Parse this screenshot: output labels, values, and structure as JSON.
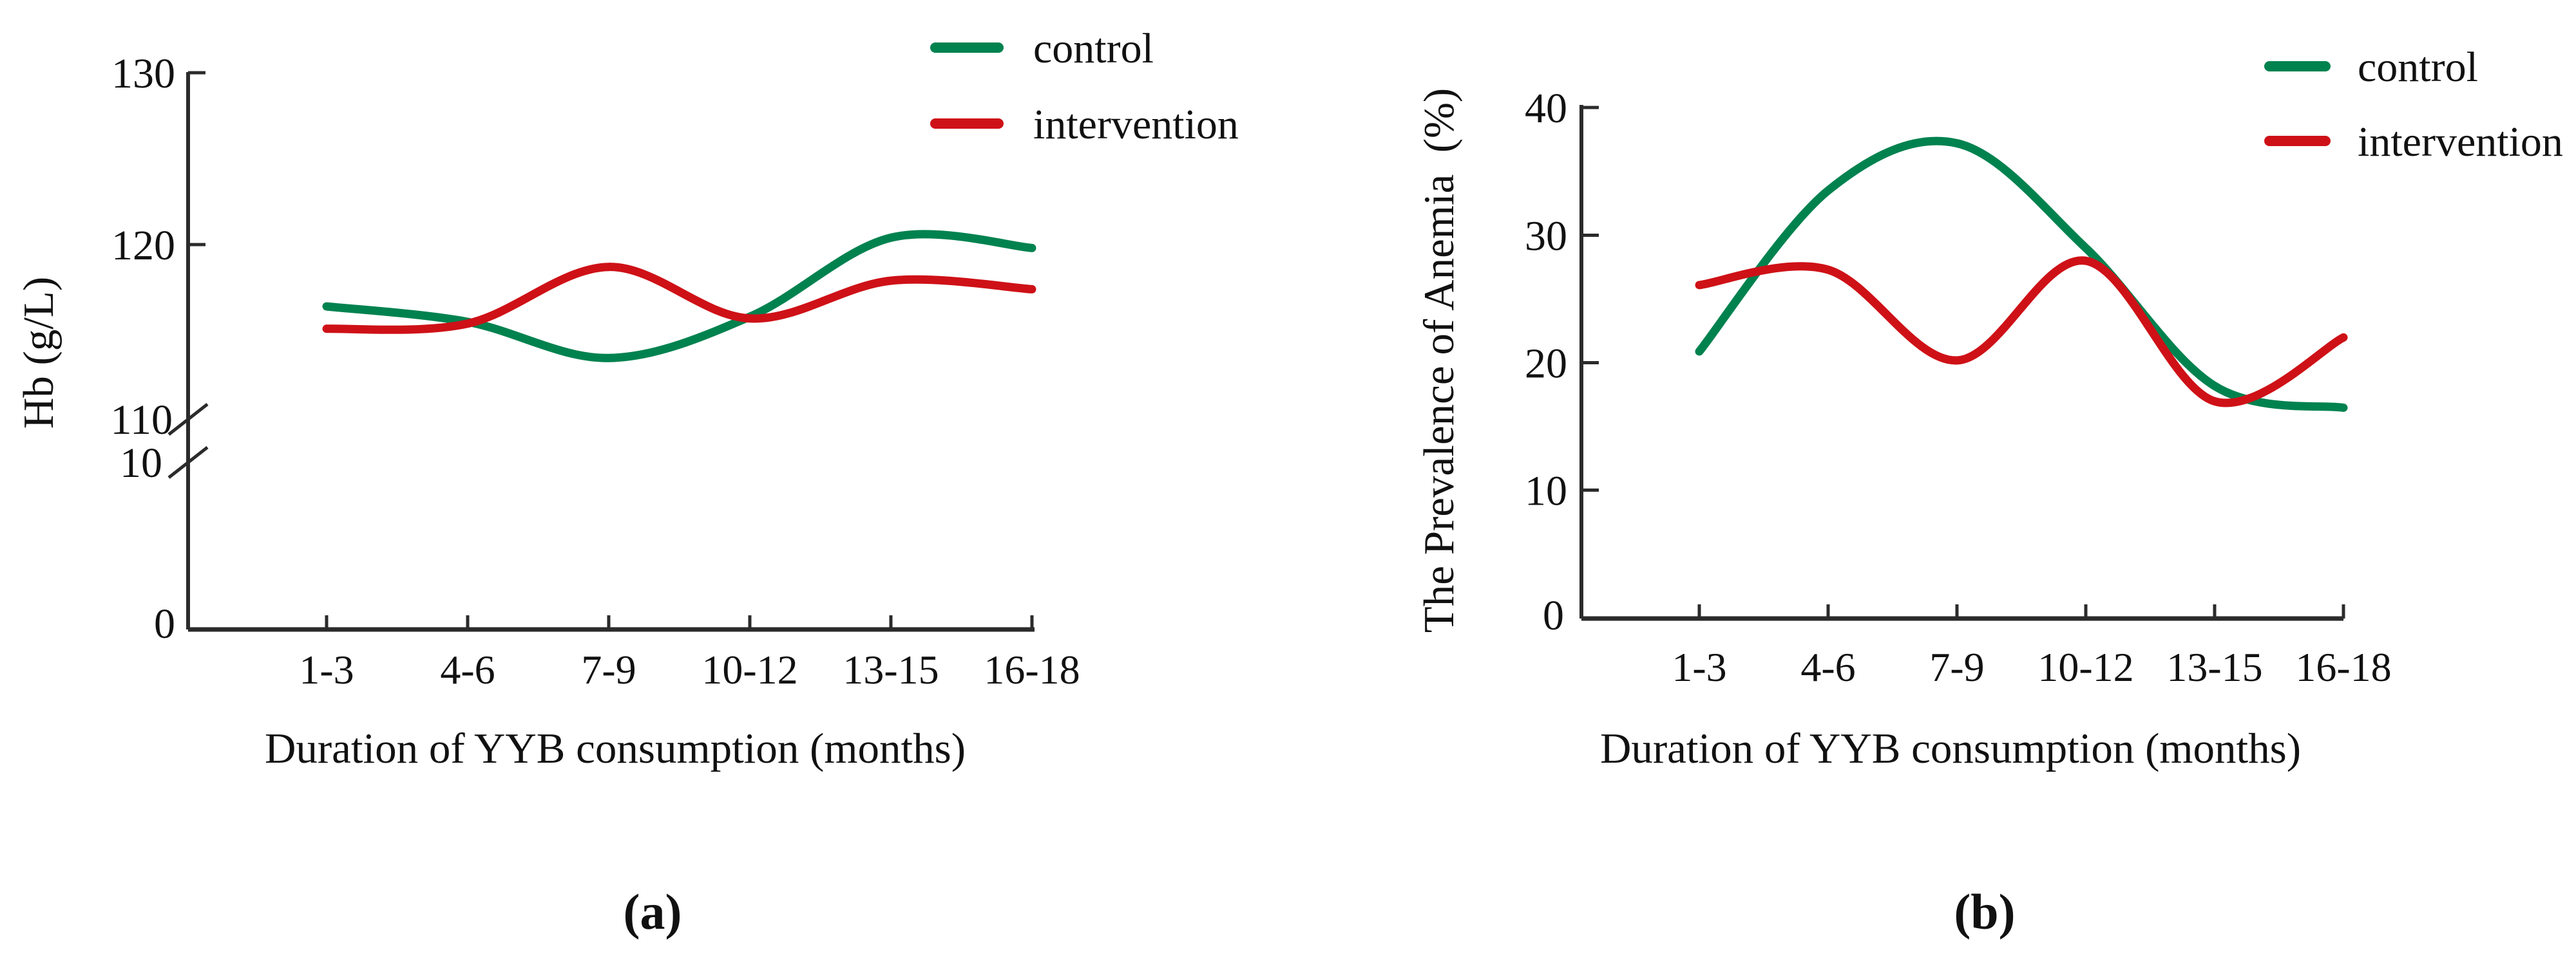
{
  "colors": {
    "control": "#00824F",
    "intervention": "#CE1117",
    "axis": "#2b2b2b",
    "text": "#111111",
    "background": "#ffffff"
  },
  "captions": {
    "a": "(a)",
    "b": "(b)"
  },
  "legend": {
    "control_label": "control",
    "intervention_label": "intervention"
  },
  "chart_data": [
    {
      "id": "a",
      "type": "line",
      "title": "",
      "categories": [
        "1-3",
        "4-6",
        "7-9",
        "10-12",
        "13-15",
        "16-18"
      ],
      "xlabel": "Duration of YYB consumption (months)",
      "ylabel": "Hb (g/L)",
      "y_axis": {
        "broken": true,
        "tick_labels": [
          "130",
          "120",
          "110",
          "10",
          "0"
        ],
        "upper_segment_range": [
          110,
          130
        ],
        "lower_segment_range": [
          0,
          10
        ],
        "note": "axis break between 10 and 110"
      },
      "grid": false,
      "legend_position": "top-right",
      "series": [
        {
          "name": "control",
          "color_key": "control",
          "values": [
            116.4,
            115.5,
            113.4,
            115.8,
            120.4,
            119.8
          ]
        },
        {
          "name": "intervention",
          "color_key": "intervention",
          "values": [
            115.1,
            115.4,
            118.7,
            115.7,
            117.9,
            117.4
          ]
        }
      ]
    },
    {
      "id": "b",
      "type": "line",
      "title": "",
      "categories": [
        "1-3",
        "4-6",
        "7-9",
        "10-12",
        "13-15",
        "16-18"
      ],
      "xlabel": "Duration of YYB consumption (months)",
      "ylabel": "The Prevalence of Anemia  (%)",
      "y_axis": {
        "broken": false,
        "tick_labels": [
          "40",
          "30",
          "20",
          "10",
          "0"
        ],
        "range": [
          0,
          40
        ]
      },
      "grid": false,
      "legend_position": "top-right",
      "series": [
        {
          "name": "control",
          "color_key": "control",
          "values": [
            20.9,
            33.5,
            37.2,
            29.0,
            18.2,
            16.5
          ]
        },
        {
          "name": "intervention",
          "color_key": "intervention",
          "values": [
            26.1,
            27.3,
            20.2,
            28.0,
            17.0,
            22.0
          ]
        }
      ]
    }
  ]
}
